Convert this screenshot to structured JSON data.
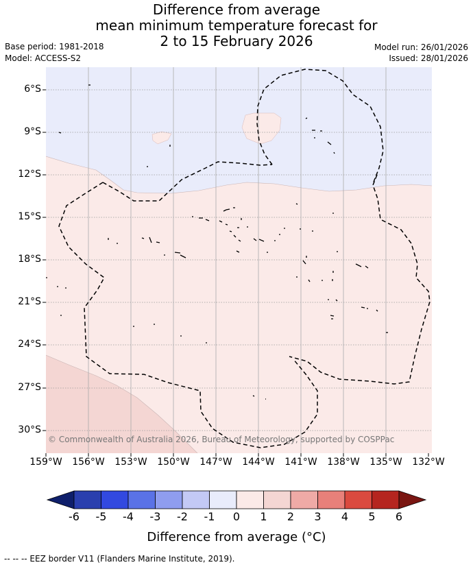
{
  "title": {
    "line1": "Difference from average",
    "line2": "mean minimum temperature forecast for",
    "line3": "2 to 15 February 2026"
  },
  "meta": {
    "base_period": "Base period: 1981-2018",
    "model": "Model: ACCESS-S2",
    "model_run": "Model run: 26/01/2026",
    "issued": "Issued: 28/01/2026"
  },
  "map": {
    "lat_labels": [
      "6°S",
      "9°S",
      "12°S",
      "15°S",
      "18°S",
      "21°S",
      "24°S",
      "27°S",
      "30°S"
    ],
    "lon_labels": [
      "159°W",
      "156°W",
      "153°W",
      "150°W",
      "147°W",
      "144°W",
      "141°W",
      "138°W",
      "135°W",
      "132°W"
    ],
    "copyright": "© Commonwealth of Australia 2026, Bureau of Meteorology, supported by COSPPac",
    "colors": {
      "band_minus1_0": "#e9ecfb",
      "band_0_1": "#fbeae8",
      "band_1_2": "#f4d6d3",
      "eez_line": "#000000"
    }
  },
  "colorbar": {
    "ticks": [
      "-6",
      "-5",
      "-4",
      "-3",
      "-2",
      "-1",
      "0",
      "1",
      "2",
      "3",
      "4",
      "5",
      "6"
    ],
    "colors": [
      "#0f1f6b",
      "#2a3fae",
      "#3249e0",
      "#5a72e6",
      "#8f9def",
      "#c3c9f5",
      "#e9ecfb",
      "#fbeae8",
      "#f4d6d3",
      "#efaaa6",
      "#e8807a",
      "#da4a3f",
      "#b5251f",
      "#7a1612"
    ],
    "label": "Difference from average (°C)"
  },
  "footer": "--  --  -- EEZ border V11 (Flanders Marine Institute, 2019)."
}
